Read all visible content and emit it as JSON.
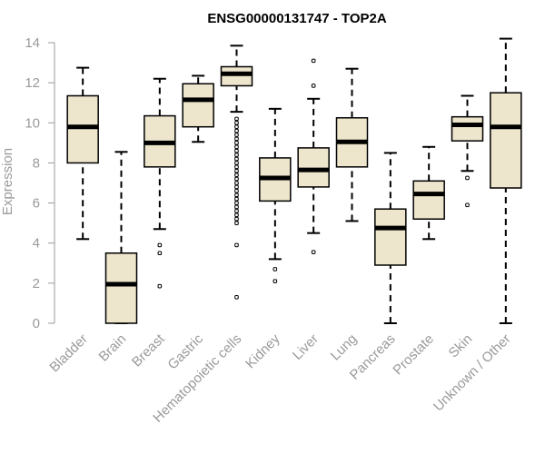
{
  "chart_data": {
    "type": "box",
    "title": "ENSG00000131747 - TOP2A",
    "xlabel": "",
    "ylabel": "Expression",
    "ylim": [
      0,
      14.4
    ],
    "yticks": [
      0,
      2,
      4,
      6,
      8,
      10,
      12,
      14
    ],
    "colors": {
      "box_fill": "#ede5cc",
      "box_stroke": "#000000",
      "median": "#000000",
      "axis": "#9a9a9a"
    },
    "categories": [
      "Bladder",
      "Brain",
      "Breast",
      "Gastric",
      "Hematopoietic cells",
      "Kidney",
      "Liver",
      "Lung",
      "Pancreas",
      "Prostate",
      "Skin",
      "Unknown / Other"
    ],
    "boxes": [
      {
        "category": "Bladder",
        "whisker_low": 4.2,
        "q1": 8.0,
        "median": 9.8,
        "q3": 11.35,
        "whisker_high": 12.75,
        "outliers": []
      },
      {
        "category": "Brain",
        "whisker_low": 0.0,
        "q1": 0.0,
        "median": 1.95,
        "q3": 3.5,
        "whisker_high": 8.55,
        "outliers": []
      },
      {
        "category": "Breast",
        "whisker_low": 4.7,
        "q1": 7.8,
        "median": 9.0,
        "q3": 10.35,
        "whisker_high": 12.2,
        "outliers": [
          3.9,
          3.5,
          1.85
        ]
      },
      {
        "category": "Gastric",
        "whisker_low": 9.05,
        "q1": 9.8,
        "median": 11.15,
        "q3": 11.95,
        "whisker_high": 12.35,
        "outliers": []
      },
      {
        "category": "Hematopoietic cells",
        "whisker_low": 10.55,
        "q1": 11.85,
        "median": 12.45,
        "q3": 12.8,
        "whisker_high": 13.85,
        "outliers": [
          10.2,
          10.0,
          9.8,
          9.6,
          9.4,
          9.2,
          9.0,
          8.8,
          8.6,
          8.4,
          8.2,
          8.0,
          7.8,
          7.6,
          7.4,
          7.2,
          7.0,
          6.8,
          6.6,
          6.4,
          6.2,
          6.0,
          5.8,
          5.6,
          5.4,
          5.2,
          5.0,
          3.9,
          1.3
        ]
      },
      {
        "category": "Kidney",
        "whisker_low": 3.2,
        "q1": 6.1,
        "median": 7.25,
        "q3": 8.25,
        "whisker_high": 10.7,
        "outliers": [
          2.7,
          2.1
        ]
      },
      {
        "category": "Liver",
        "whisker_low": 4.5,
        "q1": 6.8,
        "median": 7.65,
        "q3": 8.75,
        "whisker_high": 11.2,
        "outliers": [
          13.1,
          11.85,
          3.55
        ]
      },
      {
        "category": "Lung",
        "whisker_low": 5.1,
        "q1": 7.8,
        "median": 9.05,
        "q3": 10.25,
        "whisker_high": 12.7,
        "outliers": []
      },
      {
        "category": "Pancreas",
        "whisker_low": 0.0,
        "q1": 2.9,
        "median": 4.75,
        "q3": 5.7,
        "whisker_high": 8.5,
        "outliers": []
      },
      {
        "category": "Prostate",
        "whisker_low": 4.2,
        "q1": 5.2,
        "median": 6.45,
        "q3": 7.1,
        "whisker_high": 8.8,
        "outliers": []
      },
      {
        "category": "Skin",
        "whisker_low": 7.6,
        "q1": 9.1,
        "median": 9.9,
        "q3": 10.3,
        "whisker_high": 11.35,
        "outliers": [
          7.25,
          5.9
        ]
      },
      {
        "category": "Unknown / Other",
        "whisker_low": 0.0,
        "q1": 6.75,
        "median": 9.8,
        "q3": 11.5,
        "whisker_high": 14.2,
        "outliers": []
      }
    ]
  }
}
